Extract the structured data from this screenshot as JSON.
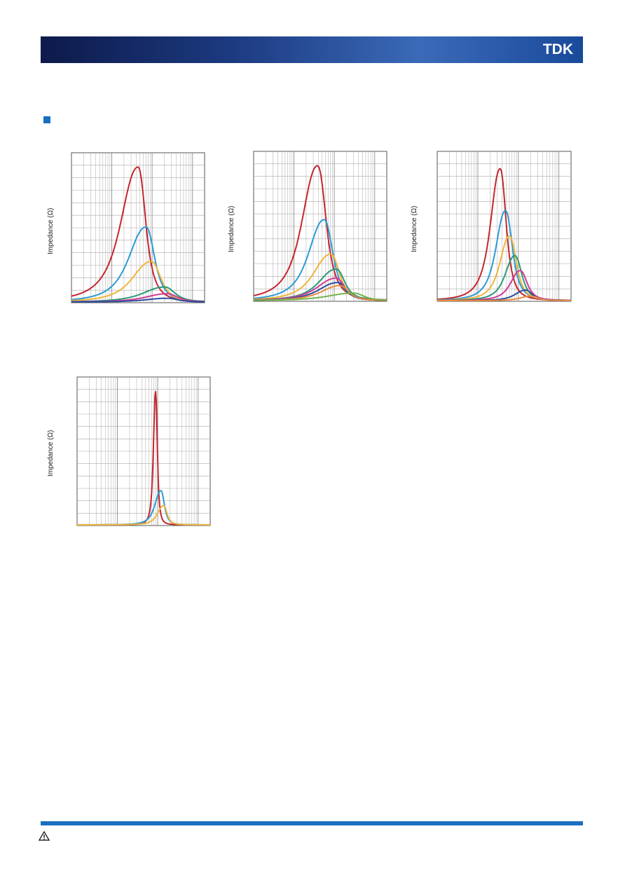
{
  "header": {
    "logo": "TDK"
  },
  "charts": [
    {
      "y_label": "Impedance (Ω)"
    },
    {
      "y_label": "Impedance (Ω)"
    },
    {
      "y_label": "Impedance (Ω)"
    },
    {
      "y_label": "Impedance (Ω)"
    }
  ]
}
